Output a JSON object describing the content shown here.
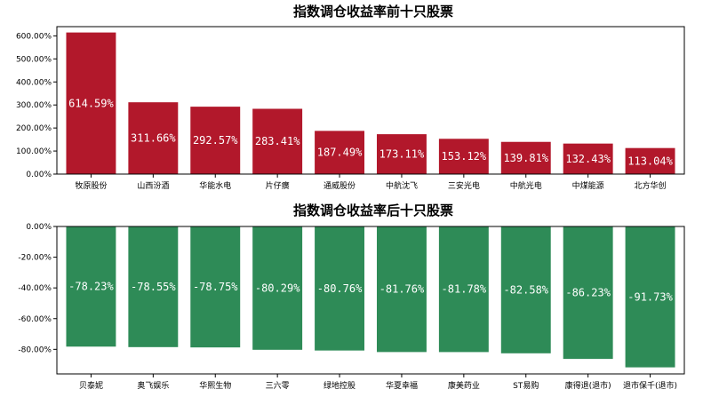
{
  "chart_data": [
    {
      "type": "bar",
      "title": "指数调仓收益率前十只股票",
      "categories": [
        "牧原股份",
        "山西汾酒",
        "华能水电",
        "片仔癀",
        "通威股份",
        "中航沈飞",
        "三安光电",
        "中航光电",
        "中煤能源",
        "北方华创"
      ],
      "values": [
        614.59,
        311.66,
        292.57,
        283.41,
        187.49,
        173.11,
        153.12,
        139.81,
        132.43,
        113.04
      ],
      "data_labels": [
        "614.59%",
        "311.66%",
        "292.57%",
        "283.41%",
        "187.49%",
        "173.11%",
        "153.12%",
        "139.81%",
        "132.43%",
        "113.04%"
      ],
      "yticks": [
        0,
        100,
        200,
        300,
        400,
        500,
        600
      ],
      "ytick_labels": [
        "0.00%",
        "100.00%",
        "200.00%",
        "300.00%",
        "400.00%",
        "500.00%",
        "600.00%"
      ],
      "ylim": [
        0,
        640
      ],
      "color": "#b2182b"
    },
    {
      "type": "bar",
      "title": "指数调仓收益率后十只股票",
      "categories": [
        "贝泰妮",
        "奥飞娱乐",
        "华熙生物",
        "三六零",
        "绿地控股",
        "华夏幸福",
        "康美药业",
        "ST易购",
        "康得退(退市)",
        "退市保千(退市)"
      ],
      "values": [
        -78.23,
        -78.55,
        -78.75,
        -80.29,
        -80.76,
        -81.76,
        -81.78,
        -82.58,
        -86.23,
        -91.73
      ],
      "data_labels": [
        "-78.23%",
        "-78.55%",
        "-78.75%",
        "-80.29%",
        "-80.76%",
        "-81.76%",
        "-81.78%",
        "-82.58%",
        "-86.23%",
        "-91.73%"
      ],
      "yticks": [
        0,
        -20,
        -40,
        -60,
        -80
      ],
      "ytick_labels": [
        "0.00%",
        "-20.00%",
        "-40.00%",
        "-60.00%",
        "-80.00%"
      ],
      "ylim": [
        -96,
        0
      ],
      "color": "#2e8b57"
    }
  ]
}
